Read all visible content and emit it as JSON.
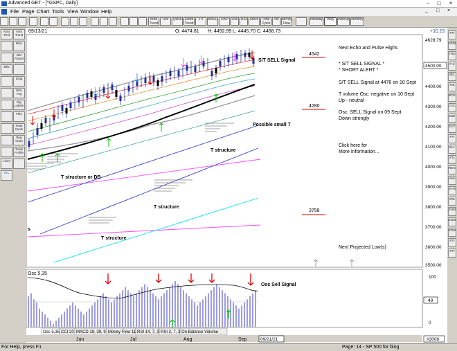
{
  "window": {
    "title": "Advanced GET - [^GSPC, Daily]",
    "min": "–",
    "max": "□",
    "close": "×"
  },
  "menu": {
    "items": [
      "File",
      "Page",
      "Chart",
      "Tools",
      "View",
      "Window",
      "Help"
    ],
    "mdi_min": "_",
    "mdi_max": "□",
    "mdi_close": "×"
  },
  "toolbar": {
    "buttons": [
      "Auto Trend",
      "Osc",
      "Quick",
      "Elliott Trend",
      "JTI",
      "MACD",
      "OBV",
      "Osc",
      "RSI",
      "Stock",
      "Time Cycle",
      "Vol",
      "Money Flow",
      "Intraday",
      "Daily",
      "Weekly",
      "Monthly"
    ],
    "selected": "Daily"
  },
  "left_toolbar": {
    "buttons": [
      "Auto Trnd",
      "Auto Trend",
      "Bias",
      "Bal Ahead",
      "Ellis",
      "Drag",
      "Mov Avg",
      "Sig Labels",
      "Fibo",
      "Seas Cycle",
      "Reg Chan",
      "Trade Profile",
      "Lines",
      "XTL"
    ]
  },
  "right_toolbar": {
    "buttons": [
      "PTI",
      "MOB",
      "TRD",
      "P-Z",
      "SEL",
      "FIB",
      "BOX",
      "CYC",
      "MID",
      "DAT",
      "PTI",
      "ELL",
      "XTL",
      "REG",
      "ANA",
      "SYM",
      "VOL",
      "ZOM",
      "ZOM",
      "ZOM",
      "PTI",
      "PTI"
    ]
  },
  "header": {
    "date": "09/13/21",
    "open": "O: 4474.81",
    "high": "H: 4492.99",
    "low": "L: 4445.70",
    "close": "C: 4468.73",
    "change": "+10.15"
  },
  "price_axis": {
    "ticks": [
      "4628.79",
      "4500.00",
      "4400.00",
      "4300.00",
      "4200.00",
      "4100.00",
      "4000.00",
      "3900.00",
      "3800.00",
      "3700.00",
      "3600.00",
      "3500.00"
    ],
    "badge": "4500.00"
  },
  "annotations": {
    "st_sell": "S/T SELL Signal",
    "possible_t": "Possible small T",
    "t1": "T structure",
    "t_db": "T structure or DB",
    "t2": "T structure",
    "t3": "T structure",
    "s_mark": "s",
    "lvl_4542": "4542",
    "lvl_4280": "4280",
    "lvl_3758": "3758"
  },
  "info": {
    "line1": "Next Echo and Pulse Highs",
    "line2": "* S/T SELL SIGNAL *",
    "line3": "* SHORT ALERT *",
    "line4": "S/T SELL Signal at 4476 on 10 Sept",
    "line5": "T volume Osc: negative on 10 Sept",
    "line6": "Up - neutral",
    "line7": "Osc: SELL Signal on 09 Sept",
    "line8": "Down strongly",
    "line9": "Click here for",
    "line10": "More Information...",
    "line11": "Next Projected Low(s)"
  },
  "oscillator": {
    "label": "Osc 5,35",
    "signal": "Osc Sell Signal",
    "ticks": [
      "100",
      "49",
      "0"
    ],
    "badge": "49"
  },
  "tabs": [
    "Osc 5,35",
    "CCI 20",
    "MACD 19, 39, 9",
    "Money Flow 11",
    "RSI 14, 7, 3",
    "RSI 2, 7, 3",
    "On Balance Volume"
  ],
  "months": [
    "Jun",
    "Jul",
    "Aug",
    "Sep"
  ],
  "date_box": "09/21/21",
  "symbol_box": "#3006",
  "status": {
    "left": "For Help, press F1",
    "right": "Page: 14 - SP 500 for blog"
  },
  "colors": {
    "sell_arrow": "#e00000",
    "buy_arrow": "#00c000",
    "accent": "#1e5ab4",
    "magenta": "#ff00ff"
  }
}
